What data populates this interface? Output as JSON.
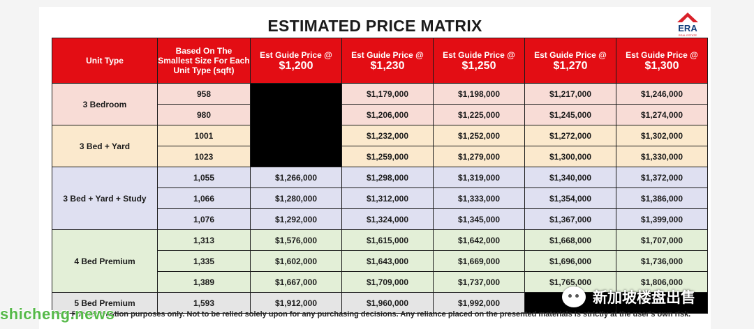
{
  "document": {
    "title": "ESTIMATED PRICE MATRIX",
    "logo": {
      "word": "ERA",
      "sub": "REAL ESTATE"
    },
    "watermark": {
      "big": "ERA",
      "small": "REAL ESTATE"
    },
    "disclaimer": "For information purposes only. Not to be relied solely upon for any purchasing decisions. Any reliance placed on the presented materials is strictly at the user's own risk."
  },
  "table": {
    "headers": {
      "unit_type": "Unit Type",
      "size": "Based On The Smallest Size For Each Unit Type (sqft)",
      "price_prefix": "Est Guide Price @",
      "prices": [
        "$1,200",
        "$1,230",
        "$1,250",
        "$1,270",
        "$1,300"
      ]
    },
    "groups": [
      {
        "label": "3 Bedroom",
        "rows": [
          {
            "size": "958",
            "values": [
              "",
              "$1,179,000",
              "$1,198,000",
              "$1,217,000",
              "$1,246,000"
            ]
          },
          {
            "size": "980",
            "values": [
              "",
              "$1,206,000",
              "$1,225,000",
              "$1,245,000",
              "$1,274,000"
            ]
          }
        ]
      },
      {
        "label": "3 Bed + Yard",
        "rows": [
          {
            "size": "1001",
            "values": [
              "",
              "$1,232,000",
              "$1,252,000",
              "$1,272,000",
              "$1,302,000"
            ]
          },
          {
            "size": "1023",
            "values": [
              "",
              "$1,259,000",
              "$1,279,000",
              "$1,300,000",
              "$1,330,000"
            ]
          }
        ]
      },
      {
        "label": "3 Bed + Yard + Study",
        "rows": [
          {
            "size": "1,055",
            "values": [
              "$1,266,000",
              "$1,298,000",
              "$1,319,000",
              "$1,340,000",
              "$1,372,000"
            ]
          },
          {
            "size": "1,066",
            "values": [
              "$1,280,000",
              "$1,312,000",
              "$1,333,000",
              "$1,354,000",
              "$1,386,000"
            ]
          },
          {
            "size": "1,076",
            "values": [
              "$1,292,000",
              "$1,324,000",
              "$1,345,000",
              "$1,367,000",
              "$1,399,000"
            ]
          }
        ]
      },
      {
        "label": "4 Bed Premium",
        "rows": [
          {
            "size": "1,313",
            "values": [
              "$1,576,000",
              "$1,615,000",
              "$1,642,000",
              "$1,668,000",
              "$1,707,000"
            ]
          },
          {
            "size": "1,335",
            "values": [
              "$1,602,000",
              "$1,643,000",
              "$1,669,000",
              "$1,696,000",
              "$1,736,000"
            ]
          },
          {
            "size": "1,389",
            "values": [
              "$1,667,000",
              "$1,709,000",
              "$1,737,000",
              "$1,765,000",
              "$1,806,000"
            ]
          }
        ]
      },
      {
        "label": "5 Bed Premium",
        "rows": [
          {
            "size": "1,593",
            "values": [
              "$1,912,000",
              "$1,960,000",
              "$1,992,000",
              "",
              ""
            ]
          }
        ]
      }
    ]
  },
  "overlays": {
    "site": "shicheng.news",
    "wechat": "新加坡楼盘出售"
  },
  "colors": {
    "header_red": "#e30d14",
    "row_3bed": "#f8dcd6",
    "row_yard": "#fbe9cd",
    "row_study": "#dfe0f1",
    "row_4bed": "#e3efd7",
    "row_5bed": "#e5e5e5"
  }
}
